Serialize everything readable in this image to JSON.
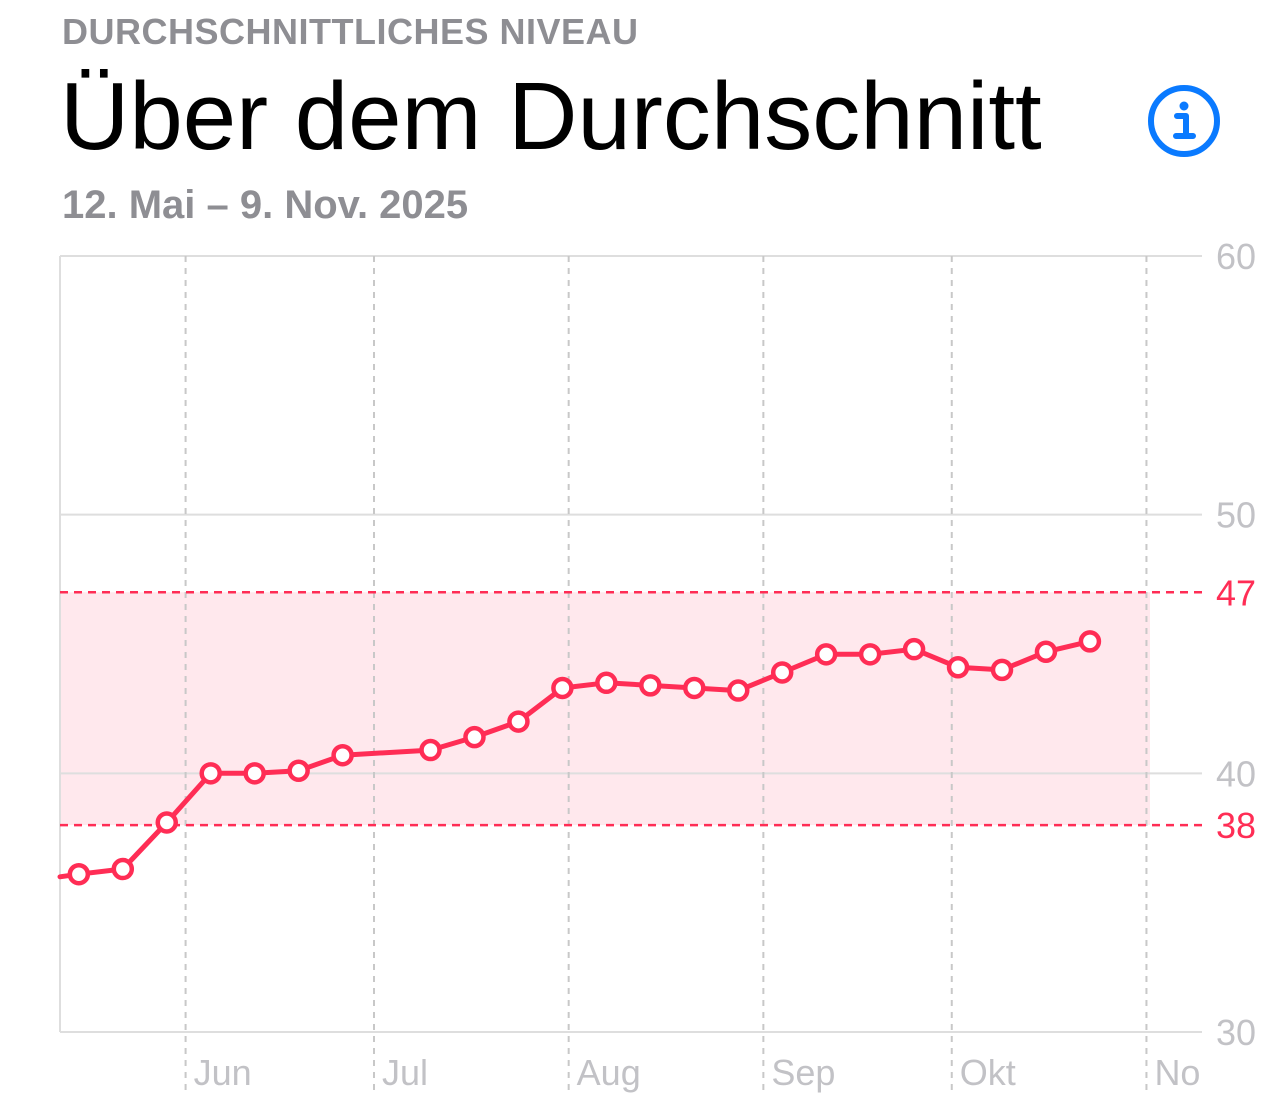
{
  "header": {
    "kicker": "DURCHSCHNITTLICHES NIVEAU",
    "title": "Über dem Durchschnitt",
    "date_range": "12. Mai – 9. Nov. 2025",
    "info_icon": "info-circle-icon"
  },
  "colors": {
    "accent": "#ff2d55",
    "band_fill": "#ffe8ed",
    "info_blue": "#0a7aff",
    "grid": "#d8d8d8",
    "muted_text": "#c2c2c6"
  },
  "chart_data": {
    "type": "line",
    "x_tick_labels": [
      "Jun",
      "Jul",
      "Aug",
      "Sep",
      "Okt",
      "No"
    ],
    "y_tick_labels": [
      "60",
      "50",
      "40",
      "30"
    ],
    "ylim": [
      30,
      60
    ],
    "range_band": {
      "low": 38,
      "high": 47,
      "low_label": "38",
      "high_label": "47"
    },
    "series": [
      {
        "values": [
          {
            "x": "2025-05-12",
            "y": 36.0
          },
          {
            "x": "2025-05-15",
            "y": 36.1
          },
          {
            "x": "2025-05-22",
            "y": 36.3
          },
          {
            "x": "2025-05-29",
            "y": 38.1
          },
          {
            "x": "2025-06-05",
            "y": 40.0
          },
          {
            "x": "2025-06-12",
            "y": 40.0
          },
          {
            "x": "2025-06-19",
            "y": 40.1
          },
          {
            "x": "2025-06-26",
            "y": 40.7
          },
          {
            "x": "2025-07-10",
            "y": 40.9
          },
          {
            "x": "2025-07-17",
            "y": 41.4
          },
          {
            "x": "2025-07-24",
            "y": 42.0
          },
          {
            "x": "2025-07-31",
            "y": 43.3
          },
          {
            "x": "2025-08-07",
            "y": 43.5
          },
          {
            "x": "2025-08-14",
            "y": 43.4
          },
          {
            "x": "2025-08-21",
            "y": 43.3
          },
          {
            "x": "2025-08-28",
            "y": 43.2
          },
          {
            "x": "2025-09-04",
            "y": 43.9
          },
          {
            "x": "2025-09-11",
            "y": 44.6
          },
          {
            "x": "2025-09-18",
            "y": 44.6
          },
          {
            "x": "2025-09-25",
            "y": 44.8
          },
          {
            "x": "2025-10-02",
            "y": 44.1
          },
          {
            "x": "2025-10-09",
            "y": 44.0
          },
          {
            "x": "2025-10-16",
            "y": 44.7
          },
          {
            "x": "2025-10-23",
            "y": 45.1
          }
        ]
      }
    ],
    "grid": true
  }
}
